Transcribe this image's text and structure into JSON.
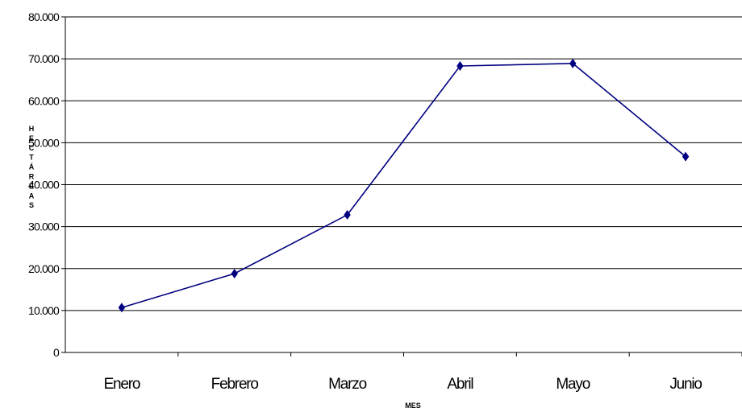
{
  "chart_data": {
    "type": "line",
    "title": "",
    "xlabel": "MES",
    "ylabel": "HECTÁREAS",
    "categories": [
      "Enero",
      "Febrero",
      "Marzo",
      "Abril",
      "Mayo",
      "Junio"
    ],
    "series": [
      {
        "values": [
          10700,
          18800,
          32800,
          68300,
          68900,
          46700
        ]
      }
    ],
    "ylim": [
      0,
      80000
    ],
    "y_ticks": [
      0,
      10000,
      20000,
      30000,
      40000,
      50000,
      60000,
      70000,
      80000
    ],
    "y_tick_labels": [
      "0",
      "10.000",
      "20.000",
      "30.000",
      "40.000",
      "50.000",
      "60.000",
      "70.000",
      "80.000"
    ],
    "grid": true,
    "legend": "none",
    "colors": {
      "line": "#000080",
      "marker": "#000080"
    }
  }
}
